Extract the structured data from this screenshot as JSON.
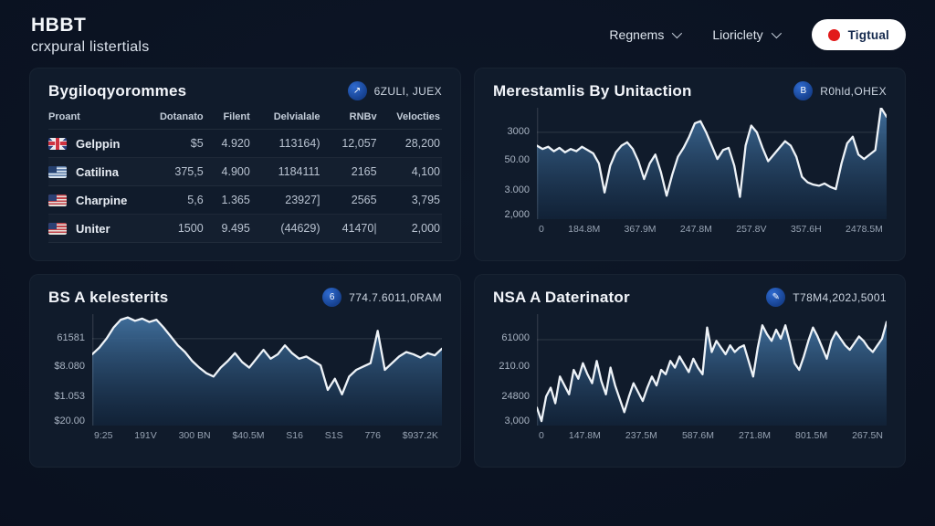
{
  "header": {
    "title": "HBBT",
    "subtitle": "crxpural listertials",
    "menus": [
      {
        "label": "Regnems"
      },
      {
        "label": "Lioriclety"
      }
    ],
    "action_button": {
      "label": "Tigtual",
      "dot_color": "#e21b1b"
    }
  },
  "colors": {
    "background": "#0a1120",
    "panel": "#101b2b",
    "accent_blue": "#2f6bd0",
    "chart_fill_top": "#41719f",
    "chart_fill_bottom": "#12263e",
    "chart_line": "#eef3f8",
    "button_red": "#e21b1b"
  },
  "table": {
    "title": "Bygiloqyorommes",
    "badge": "6ZULI, JUEX",
    "badge_icon_glyph": "↗",
    "columns": [
      "Proant",
      "Dotanato",
      "Filent",
      "Delvialale",
      "RNBv",
      "Velocties"
    ],
    "rows": [
      {
        "flag": "uk",
        "name": "Gelppin",
        "values": [
          "$5",
          "4.920",
          "113164)",
          "12,057",
          "28,200"
        ]
      },
      {
        "flag": "us-blue",
        "name": "Catilina",
        "values": [
          "375,5",
          "4.900",
          "1184111",
          "2165",
          "4,100"
        ]
      },
      {
        "flag": "us",
        "name": "Charpine",
        "values": [
          "5,6",
          "1.365",
          "23927]",
          "2565",
          "3,795"
        ]
      },
      {
        "flag": "us",
        "name": "Uniter",
        "values": [
          "1500",
          "9.495",
          "(44629)",
          "41470|",
          "2,000"
        ]
      }
    ]
  },
  "chart_data": [
    {
      "type": "area",
      "title": "Merestamlis By Unitaction",
      "badge": "R0hld,OHEX",
      "badge_icon_glyph": "B",
      "y_ticks": [
        "3000",
        "50.00",
        "3.000",
        "2,000"
      ],
      "x_ticks": [
        "0",
        "184.8M",
        "367.9M",
        "247.8M",
        "257.8V",
        "357.6H",
        "2478.5M"
      ],
      "grid_value": 78,
      "ylim": [
        0,
        100
      ],
      "values": [
        66,
        63,
        65,
        61,
        64,
        60,
        63,
        61,
        65,
        62,
        59,
        50,
        24,
        48,
        60,
        66,
        69,
        63,
        52,
        36,
        50,
        58,
        42,
        21,
        40,
        56,
        64,
        74,
        86,
        88,
        78,
        66,
        54,
        62,
        64,
        48,
        20,
        66,
        84,
        78,
        64,
        52,
        58,
        64,
        70,
        66,
        56,
        38,
        33,
        31,
        30,
        32,
        29,
        27,
        50,
        68,
        74,
        58,
        54,
        58,
        62,
        100,
        92
      ]
    },
    {
      "type": "area",
      "title": "BS A kelesterits",
      "badge": "774.7.6011,0RAM",
      "badge_icon_glyph": "6",
      "y_ticks": [
        "61581",
        "$8.080",
        "$1.053",
        "$20.00"
      ],
      "x_ticks": [
        "9:25",
        "191V",
        "300 BN",
        "$40.5M",
        "S16",
        "S1S",
        "776",
        "$937.2K"
      ],
      "grid_value": 78,
      "ylim": [
        0,
        100
      ],
      "values": [
        64,
        70,
        78,
        88,
        95,
        97,
        94,
        96,
        93,
        95,
        88,
        80,
        72,
        66,
        58,
        52,
        47,
        44,
        52,
        58,
        65,
        57,
        52,
        60,
        68,
        60,
        64,
        72,
        65,
        60,
        62,
        58,
        54,
        32,
        42,
        28,
        44,
        50,
        53,
        56,
        85,
        50,
        56,
        62,
        66,
        64,
        61,
        65,
        63,
        69
      ]
    },
    {
      "type": "area",
      "title": "NSA A Daterinator",
      "badge": "T78M4,202J,5001",
      "badge_icon_glyph": "✎",
      "y_ticks": [
        "61000",
        "210.00",
        "24800",
        "3,000"
      ],
      "x_ticks": [
        "0",
        "147.8M",
        "237.5M",
        "587.6M",
        "271.8M",
        "801.5M",
        "267.5N"
      ],
      "grid_value": 77,
      "ylim": [
        0,
        100
      ],
      "values": [
        16,
        4,
        26,
        34,
        20,
        44,
        36,
        28,
        50,
        42,
        56,
        46,
        38,
        58,
        40,
        28,
        52,
        36,
        24,
        12,
        26,
        38,
        30,
        22,
        34,
        44,
        36,
        50,
        46,
        58,
        52,
        62,
        55,
        48,
        60,
        52,
        46,
        88,
        66,
        76,
        70,
        64,
        72,
        66,
        70,
        72,
        58,
        44,
        70,
        90,
        82,
        76,
        86,
        78,
        90,
        74,
        56,
        50,
        62,
        76,
        88,
        80,
        70,
        60,
        76,
        84,
        78,
        72,
        68,
        74,
        80,
        76,
        70,
        66,
        72,
        78,
        93
      ]
    }
  ]
}
